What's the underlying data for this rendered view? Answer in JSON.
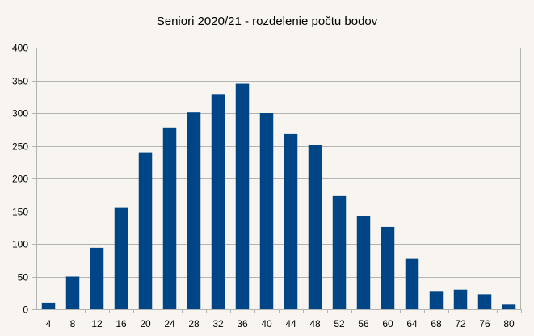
{
  "chart_data": {
    "type": "bar",
    "title": "Seniori 2020/21 - rozdelenie počtu bodov",
    "xlabel": "",
    "ylabel": "",
    "categories": [
      "4",
      "8",
      "12",
      "16",
      "20",
      "24",
      "28",
      "32",
      "36",
      "40",
      "44",
      "48",
      "52",
      "56",
      "60",
      "64",
      "68",
      "72",
      "76",
      "80"
    ],
    "values": [
      10,
      50,
      94,
      156,
      240,
      278,
      301,
      328,
      345,
      300,
      268,
      251,
      173,
      142,
      126,
      77,
      28,
      30,
      23,
      7
    ],
    "ylim": [
      0,
      400
    ],
    "yticks": [
      0,
      50,
      100,
      150,
      200,
      250,
      300,
      350,
      400
    ],
    "grid": true,
    "legend": "none",
    "colors": {
      "bar": "#004586",
      "grid": "#b3b3b3",
      "background": "#f8f4ef",
      "axis": "#b3b3b3"
    }
  }
}
